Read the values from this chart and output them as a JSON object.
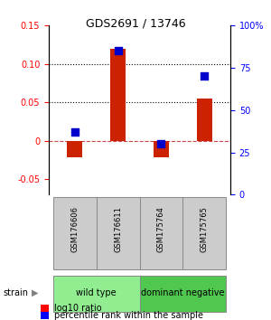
{
  "title": "GDS2691 / 13746",
  "samples": [
    "GSM176606",
    "GSM176611",
    "GSM175764",
    "GSM175765"
  ],
  "log10_ratio": [
    -0.022,
    0.12,
    -0.022,
    0.055
  ],
  "percentile_rank": [
    37,
    85,
    30,
    70
  ],
  "groups": [
    {
      "label": "wild type",
      "samples": [
        0,
        1
      ],
      "color": "#90ee90"
    },
    {
      "label": "dominant negative",
      "samples": [
        2,
        3
      ],
      "color": "#50c850"
    }
  ],
  "ylim_left": [
    -0.07,
    0.15
  ],
  "ylim_right": [
    0,
    100
  ],
  "yticks_left": [
    -0.05,
    0,
    0.05,
    0.1,
    0.15
  ],
  "yticks_right": [
    0,
    25,
    50,
    75,
    100
  ],
  "ytick_labels_left": [
    "-0.05",
    "0",
    "0.05",
    "0.10",
    "0.15"
  ],
  "ytick_labels_right": [
    "0",
    "25",
    "50",
    "75",
    "100%"
  ],
  "hlines": [
    0.1,
    0.05
  ],
  "bar_color": "#cc2200",
  "scatter_color": "#0000cc",
  "bar_width": 0.35,
  "legend_log10": "log10 ratio",
  "legend_percentile": "percentile rank within the sample",
  "strain_label": "strain",
  "background_color": "#ffffff",
  "plot_bg": "#ffffff",
  "label_box_color": "#cccccc",
  "label_box_linecolor": "#888888"
}
